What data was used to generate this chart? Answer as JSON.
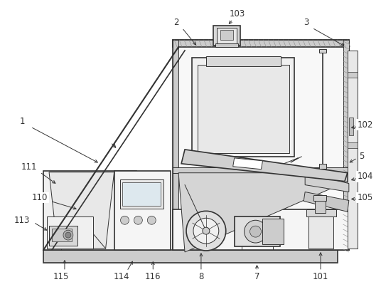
{
  "bg_color": "#ffffff",
  "line_color": "#333333",
  "lw_main": 1.2,
  "lw_thin": 0.7,
  "gray_dark": "#aaaaaa",
  "gray_mid": "#cccccc",
  "gray_light": "#e8e8e8",
  "gray_fill": "#d8d8d8",
  "white": "#ffffff",
  "hatch_color": "#999999"
}
